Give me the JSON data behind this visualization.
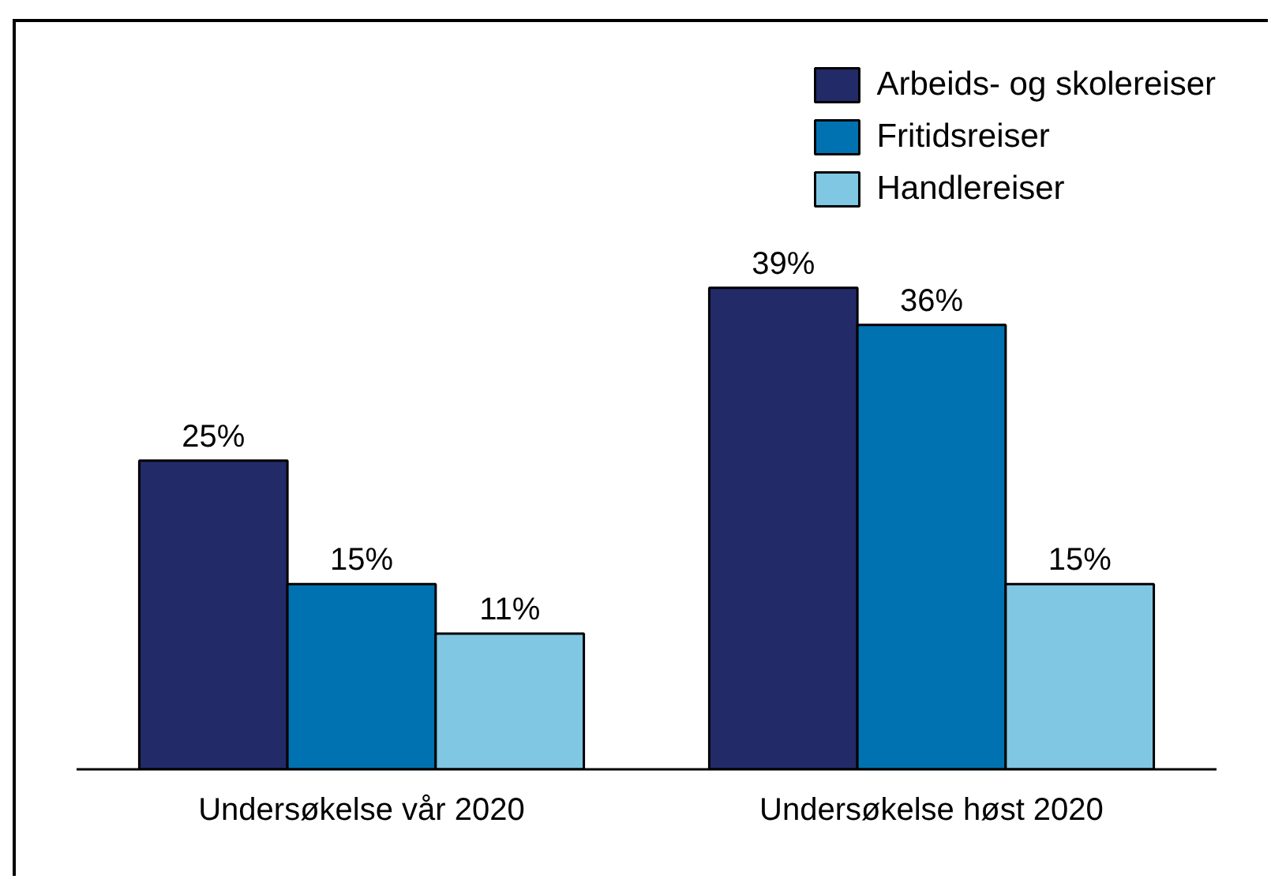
{
  "chart_data": {
    "type": "bar",
    "categories": [
      "Undersøkelse vår 2020",
      "Undersøkelse høst 2020"
    ],
    "series": [
      {
        "name": "Arbeids- og skolereiser",
        "color": "#232a68",
        "values": [
          25,
          39
        ],
        "value_labels": [
          "25%",
          "39%"
        ]
      },
      {
        "name": "Fritidsreiser",
        "color": "#0072b2",
        "values": [
          15,
          36
        ],
        "value_labels": [
          "15%",
          "36%"
        ]
      },
      {
        "name": "Handlereiser",
        "color": "#7fc7e3",
        "values": [
          11,
          15
        ],
        "value_labels": [
          "11%",
          "15%"
        ]
      }
    ],
    "tick_labels": "x",
    "legend": "top right"
  }
}
